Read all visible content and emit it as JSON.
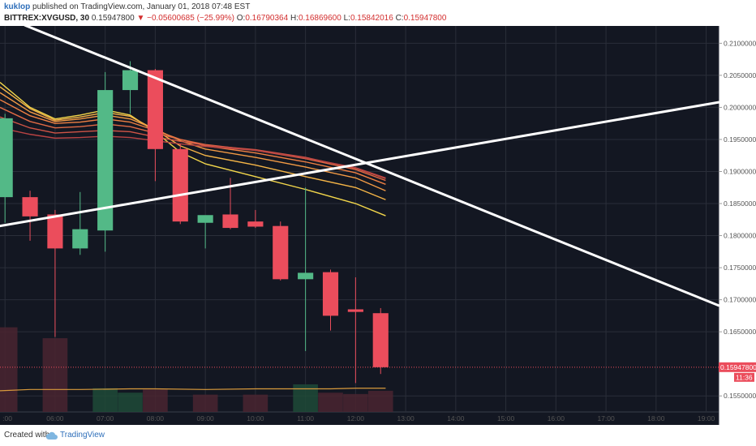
{
  "header": {
    "author": "kuklop",
    "published_text": " published on TradingView.com, January 01, 2018 07:48 EST",
    "symbol_label": "BITTREX:XVGUSD, 30",
    "last_value": "0.15947800",
    "change": "−0.05600685 (−25.99%)",
    "open_label": "O:",
    "open_value": "0.16790364",
    "high_label": "H:",
    "high_value": "0.16869600",
    "low_label": "L:",
    "low_value": "0.15842016",
    "close_label": "C:",
    "close_value": "0.15947800"
  },
  "footer": {
    "created_with": "Created with",
    "brand": "TradingView",
    "logo_icon": "tradingview-cloud-icon"
  },
  "colors": {
    "background": "#131722",
    "grid": "#2a2e39",
    "up": "#53b987",
    "down": "#eb4d5c",
    "trendline": "#ffffff",
    "axis_text": "#b2b5be",
    "axis_bg": "#ffffff",
    "price_line": "#eb4d5c"
  },
  "chart_data": {
    "type": "candlestick",
    "symbol": "BITTREX:XVGUSD",
    "interval": "30",
    "y_axis": {
      "ticks": [
        "0.21000000",
        "0.20500000",
        "0.20000000",
        "0.19500000",
        "0.19000000",
        "0.18500000",
        "0.18000000",
        "0.17500000",
        "0.17000000",
        "0.16500000",
        "0.15500000"
      ],
      "ylim": [
        0.1525,
        0.2127
      ]
    },
    "x_axis": {
      "ticks": [
        ":00",
        "06:00",
        "07:00",
        "08:00",
        "09:00",
        "10:00",
        "11:00",
        "12:00",
        "13:00",
        "14:00",
        "15:00",
        "16:00",
        "17:00",
        "18:00",
        "19:00"
      ],
      "tick_hours": [
        5.0,
        6.0,
        7.0,
        8.0,
        9.0,
        10.0,
        11.0,
        12.0,
        13.0,
        14.0,
        15.0,
        16.0,
        17.0,
        18.0,
        19.0
      ],
      "xlim": [
        4.9,
        19.25
      ]
    },
    "candles": [
      {
        "t": 5.0,
        "o": 0.186,
        "h": 0.199,
        "l": 0.182,
        "c": 0.1983
      },
      {
        "t": 5.5,
        "o": 0.186,
        "h": 0.187,
        "l": 0.1792,
        "c": 0.183
      },
      {
        "t": 6.0,
        "o": 0.1833,
        "h": 0.184,
        "l": 0.1642,
        "c": 0.178
      },
      {
        "t": 6.5,
        "o": 0.178,
        "h": 0.1868,
        "l": 0.177,
        "c": 0.181
      },
      {
        "t": 7.0,
        "o": 0.1808,
        "h": 0.2055,
        "l": 0.1775,
        "c": 0.2027
      },
      {
        "t": 7.5,
        "o": 0.2027,
        "h": 0.2072,
        "l": 0.199,
        "c": 0.2058
      },
      {
        "t": 8.0,
        "o": 0.2058,
        "h": 0.206,
        "l": 0.1885,
        "c": 0.1935
      },
      {
        "t": 8.5,
        "o": 0.1935,
        "h": 0.1943,
        "l": 0.1818,
        "c": 0.1822
      },
      {
        "t": 9.0,
        "o": 0.182,
        "h": 0.183,
        "l": 0.178,
        "c": 0.1832
      },
      {
        "t": 9.5,
        "o": 0.1833,
        "h": 0.189,
        "l": 0.181,
        "c": 0.1812
      },
      {
        "t": 10.0,
        "o": 0.1822,
        "h": 0.184,
        "l": 0.1812,
        "c": 0.1814
      },
      {
        "t": 10.5,
        "o": 0.1815,
        "h": 0.1822,
        "l": 0.173,
        "c": 0.1732
      },
      {
        "t": 11.0,
        "o": 0.1732,
        "h": 0.1875,
        "l": 0.162,
        "c": 0.1742
      },
      {
        "t": 11.5,
        "o": 0.1743,
        "h": 0.1747,
        "l": 0.1652,
        "c": 0.1675
      },
      {
        "t": 12.0,
        "o": 0.1685,
        "h": 0.1735,
        "l": 0.157,
        "c": 0.1681
      },
      {
        "t": 12.5,
        "o": 0.16790364,
        "h": 0.168696,
        "l": 0.15842016,
        "c": 0.159478
      }
    ],
    "trendlines": [
      {
        "x1": 5.4,
        "y1": 0.2128,
        "x2": 19.25,
        "y2": 0.1691
      },
      {
        "x1": 4.9,
        "y1": 0.1815,
        "x2": 19.25,
        "y2": 0.2008
      }
    ],
    "ribbon": [
      {
        "color": "#f2d64b",
        "values": [
          0.2039,
          0.2,
          0.1982,
          0.1988,
          0.1996,
          0.1988,
          0.1962,
          0.193,
          0.1912,
          0.1892,
          0.1872,
          0.185,
          0.1831
        ]
      },
      {
        "color": "#f5b547",
        "values": [
          0.2032,
          0.1998,
          0.198,
          0.1985,
          0.1992,
          0.1986,
          0.1965,
          0.194,
          0.1925,
          0.191,
          0.1892,
          0.1875,
          0.1856
        ]
      },
      {
        "color": "#f29a45",
        "values": [
          0.2023,
          0.1993,
          0.1978,
          0.1982,
          0.1988,
          0.1982,
          0.1966,
          0.1948,
          0.1935,
          0.1922,
          0.1907,
          0.189,
          0.187
        ]
      },
      {
        "color": "#ee8043",
        "values": [
          0.2012,
          0.1987,
          0.1975,
          0.1977,
          0.1982,
          0.1977,
          0.1964,
          0.195,
          0.194,
          0.1929,
          0.1915,
          0.1898,
          0.188
        ]
      },
      {
        "color": "#e06a45",
        "values": [
          0.2,
          0.1978,
          0.1968,
          0.197,
          0.1974,
          0.197,
          0.196,
          0.195,
          0.1942,
          0.1933,
          0.192,
          0.1903,
          0.1886
        ]
      },
      {
        "color": "#cf5446",
        "values": [
          0.1985,
          0.1968,
          0.196,
          0.1962,
          0.1964,
          0.1962,
          0.1954,
          0.1947,
          0.1941,
          0.1934,
          0.1922,
          0.1905,
          0.1889
        ]
      },
      {
        "color": "#b84343",
        "values": [
          0.1968,
          0.1958,
          0.1952,
          0.1953,
          0.1955,
          0.1953,
          0.1948,
          0.1943,
          0.1939,
          0.1933,
          0.1921,
          0.1906,
          0.189
        ]
      }
    ],
    "ribbon_times": [
      4.9,
      5.5,
      6.0,
      6.5,
      7.0,
      7.5,
      8.0,
      8.5,
      9.0,
      10.0,
      11.0,
      12.0,
      12.6
    ],
    "volume_ma": [
      0.1558,
      0.156,
      0.156,
      0.1561,
      0.1561,
      0.156,
      0.1561,
      0.1561,
      0.1561,
      0.1562,
      0.1562,
      0.1562
    ],
    "volume_ma_times": [
      4.9,
      5.5,
      6.5,
      7.5,
      8.0,
      9.0,
      10.0,
      11.0,
      11.5,
      12.0,
      12.3,
      12.6
    ],
    "volume": [
      {
        "t": 5.0,
        "top": 0.1657,
        "dir": "down"
      },
      {
        "t": 6.0,
        "top": 0.164,
        "dir": "down"
      },
      {
        "t": 7.0,
        "top": 0.1562,
        "dir": "up"
      },
      {
        "t": 7.5,
        "top": 0.1555,
        "dir": "up"
      },
      {
        "t": 8.0,
        "top": 0.156,
        "dir": "down"
      },
      {
        "t": 9.0,
        "top": 0.1552,
        "dir": "down"
      },
      {
        "t": 10.0,
        "top": 0.1552,
        "dir": "down"
      },
      {
        "t": 11.0,
        "top": 0.1568,
        "dir": "up"
      },
      {
        "t": 11.5,
        "top": 0.1555,
        "dir": "down"
      },
      {
        "t": 12.0,
        "top": 0.1553,
        "dir": "down"
      },
      {
        "t": 12.5,
        "top": 0.1558,
        "dir": "down"
      }
    ],
    "last_price_label": "0.15947800",
    "countdown_label": "11:36"
  }
}
